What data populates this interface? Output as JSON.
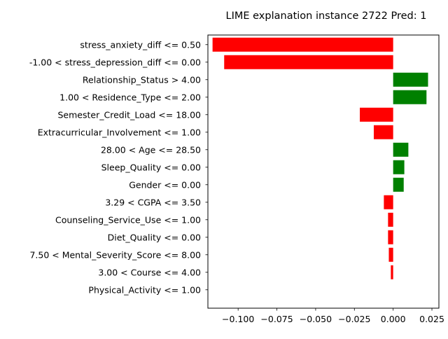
{
  "chart_data": {
    "type": "bar",
    "orientation": "horizontal",
    "title": "LIME explanation instance 2722 Pred: 1",
    "xlabel": "",
    "ylabel": "",
    "xlim": [
      -0.1195,
      0.0295
    ],
    "xticks": [
      {
        "value": -0.1,
        "label": "−0.100"
      },
      {
        "value": -0.075,
        "label": "−0.075"
      },
      {
        "value": -0.05,
        "label": "−0.050"
      },
      {
        "value": -0.025,
        "label": "−0.025"
      },
      {
        "value": 0.0,
        "label": "0.000"
      },
      {
        "value": 0.025,
        "label": "0.025"
      }
    ],
    "grid": false,
    "categories": [
      "stress_anxiety_diff <= 0.50",
      "-1.00 < stress_depression_diff <= 0.00",
      "Relationship_Status > 4.00",
      "1.00 < Residence_Type <= 2.00",
      "Semester_Credit_Load <= 18.00",
      "Extracurricular_Involvement <= 1.00",
      "28.00 < Age <= 28.50",
      "Sleep_Quality <= 0.00",
      "Gender <= 0.00",
      "3.29 < CGPA <= 3.50",
      "Counseling_Service_Use <= 1.00",
      "Diet_Quality <= 0.00",
      "7.50 < Mental_Severity_Score <= 8.00",
      "3.00 < Course <= 4.00",
      "Physical_Activity <= 1.00"
    ],
    "values": [
      -0.1165,
      -0.109,
      0.0225,
      0.0215,
      -0.0215,
      -0.0125,
      0.0098,
      0.0072,
      0.0068,
      -0.006,
      -0.0033,
      -0.0033,
      -0.0028,
      -0.0015,
      0.0
    ],
    "colors": {
      "positive": "#008000",
      "negative": "#ff0000"
    }
  }
}
